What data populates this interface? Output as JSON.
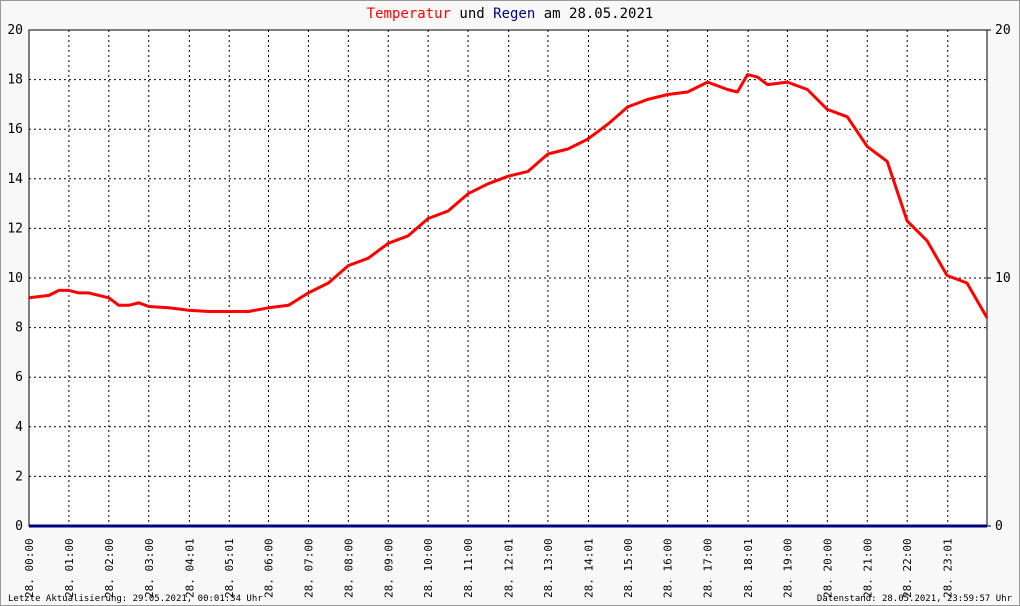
{
  "chart_data": {
    "type": "line",
    "title_parts": [
      "und",
      "am 28.05.2021"
    ],
    "x": [
      0,
      0.5,
      0.75,
      1,
      1.25,
      1.5,
      1.75,
      2,
      2.25,
      2.5,
      2.75,
      3,
      3.5,
      4,
      4.5,
      5,
      5.5,
      6,
      6.5,
      7,
      7.5,
      8,
      8.5,
      9,
      9.5,
      10,
      10.5,
      11,
      11.5,
      12,
      12.5,
      13,
      13.5,
      14,
      14.5,
      15,
      15.5,
      16,
      16.5,
      17,
      17.5,
      17.75,
      18,
      18.25,
      18.5,
      19,
      19.5,
      20,
      20.5,
      21,
      21.5,
      22,
      22.5,
      23,
      23.5,
      24
    ],
    "series": [
      {
        "name": "Temperatur",
        "color": "#ff0000",
        "axis": "y",
        "values": [
          9.2,
          9.3,
          9.5,
          9.5,
          9.4,
          9.4,
          9.3,
          9.2,
          8.9,
          8.9,
          9.0,
          8.85,
          8.8,
          8.7,
          8.65,
          8.65,
          8.65,
          8.8,
          8.9,
          9.4,
          9.8,
          10.5,
          10.8,
          11.4,
          11.7,
          12.4,
          12.7,
          13.4,
          13.8,
          14.1,
          14.3,
          15.0,
          15.2,
          15.6,
          16.2,
          16.9,
          17.2,
          17.4,
          17.5,
          17.9,
          17.6,
          17.5,
          18.2,
          18.1,
          17.8,
          17.9,
          17.6,
          16.8,
          16.5,
          15.3,
          14.7,
          12.3,
          11.5,
          10.1,
          9.8,
          8.4
        ]
      },
      {
        "name": "Regen",
        "color": "#000080",
        "axis": "y2",
        "values": [
          0,
          0,
          0,
          0,
          0,
          0,
          0,
          0,
          0,
          0,
          0,
          0,
          0,
          0,
          0,
          0,
          0,
          0,
          0,
          0,
          0,
          0,
          0,
          0,
          0,
          0,
          0,
          0,
          0,
          0,
          0,
          0,
          0,
          0,
          0,
          0,
          0,
          0,
          0,
          0,
          0,
          0,
          0,
          0,
          0,
          0,
          0,
          0,
          0,
          0,
          0,
          0,
          0,
          0,
          0,
          0
        ]
      }
    ],
    "xlim": [
      0,
      24
    ],
    "xticks": [
      {
        "value": 0,
        "label": "28. 00:00"
      },
      {
        "value": 1,
        "label": "28. 01:00"
      },
      {
        "value": 2,
        "label": "28. 02:00"
      },
      {
        "value": 3,
        "label": "28. 03:00"
      },
      {
        "value": 4.0167,
        "label": "28. 04:01"
      },
      {
        "value": 5.0167,
        "label": "28. 05:01"
      },
      {
        "value": 6,
        "label": "28. 06:00"
      },
      {
        "value": 7,
        "label": "28. 07:00"
      },
      {
        "value": 8,
        "label": "28. 08:00"
      },
      {
        "value": 9,
        "label": "28. 09:00"
      },
      {
        "value": 10,
        "label": "28. 10:00"
      },
      {
        "value": 11,
        "label": "28. 11:00"
      },
      {
        "value": 12.0167,
        "label": "28. 12:01"
      },
      {
        "value": 13,
        "label": "28. 13:00"
      },
      {
        "value": 14.0167,
        "label": "28. 14:01"
      },
      {
        "value": 15,
        "label": "28. 15:00"
      },
      {
        "value": 16,
        "label": "28. 16:00"
      },
      {
        "value": 17,
        "label": "28. 17:00"
      },
      {
        "value": 18.0167,
        "label": "28. 18:01"
      },
      {
        "value": 19,
        "label": "28. 19:00"
      },
      {
        "value": 20,
        "label": "28. 20:00"
      },
      {
        "value": 21,
        "label": "28. 21:00"
      },
      {
        "value": 22,
        "label": "28. 22:00"
      },
      {
        "value": 23.0167,
        "label": "28. 23:01"
      }
    ],
    "ylim": [
      0,
      20
    ],
    "yticks": [
      0,
      2,
      4,
      6,
      8,
      10,
      12,
      14,
      16,
      18,
      20
    ],
    "y2lim": [
      0,
      20
    ],
    "y2ticks": [
      0,
      10,
      20
    ],
    "grid": true
  },
  "footer": {
    "left": "Letzte Aktualisierung: 29.05.2021, 00:01:34 Uhr",
    "right": "Datenstand: 28.05.2021, 23:59:57 Uhr"
  }
}
